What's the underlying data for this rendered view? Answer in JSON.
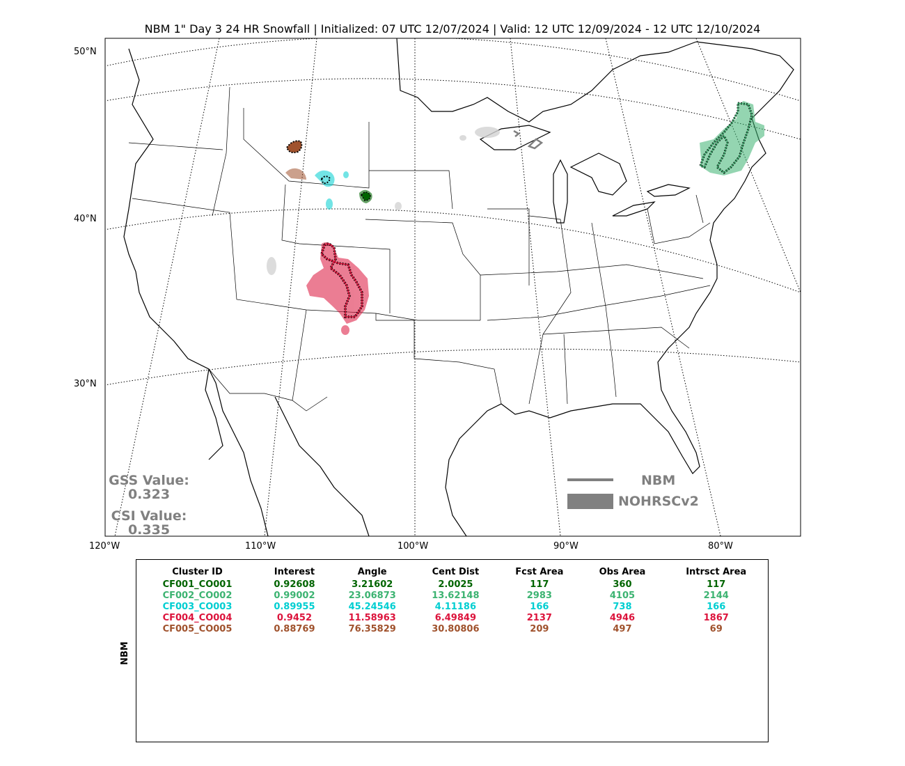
{
  "title": "NBM 1\" Day 3 24 HR Snowfall | Initialized: 07 UTC 12/07/2024 | Valid: 12 UTC 12/09/2024 - 12 UTC 12/10/2024",
  "lat_labels": [
    "50°N",
    "40°N",
    "30°N"
  ],
  "lon_labels": [
    "120°W",
    "110°W",
    "100°W",
    "90°W",
    "80°W"
  ],
  "gss": {
    "label": "GSS Value:",
    "value": "0.323"
  },
  "csi": {
    "label": "CSI Value:",
    "value": "0.335"
  },
  "legend": {
    "line_label": "NBM",
    "fill_label": "NOHRSCv2",
    "color": "#808080"
  },
  "side_label": "NBM",
  "table": {
    "headers": [
      "Cluster ID",
      "Interest",
      "Angle",
      "Cent Dist",
      "Fcst Area",
      "Obs Area",
      "Intrsct Area"
    ],
    "rows": [
      {
        "color": "#006400",
        "cells": [
          "CF001_CO001",
          "0.92608",
          "3.21602",
          "2.0025",
          "117",
          "360",
          "117"
        ]
      },
      {
        "color": "#3cb371",
        "cells": [
          "CF002_CO002",
          "0.99002",
          "23.06873",
          "13.62148",
          "2983",
          "4105",
          "2144"
        ]
      },
      {
        "color": "#00ced1",
        "cells": [
          "CF003_CO003",
          "0.89955",
          "45.24546",
          "4.11186",
          "166",
          "738",
          "166"
        ]
      },
      {
        "color": "#dc143c",
        "cells": [
          "CF004_CO004",
          "0.9452",
          "11.58963",
          "6.49849",
          "2137",
          "4946",
          "1867"
        ]
      },
      {
        "color": "#a0522d",
        "cells": [
          "CF005_CO005",
          "0.88769",
          "76.35829",
          "30.80806",
          "209",
          "497",
          "69"
        ]
      }
    ]
  },
  "clusters": {
    "green_dark": "#006400",
    "green_light": "#3cb371",
    "cyan": "#00ced1",
    "crimson": "#dc143c",
    "brown": "#a0522d",
    "unmatched": "#d3d3d3"
  }
}
